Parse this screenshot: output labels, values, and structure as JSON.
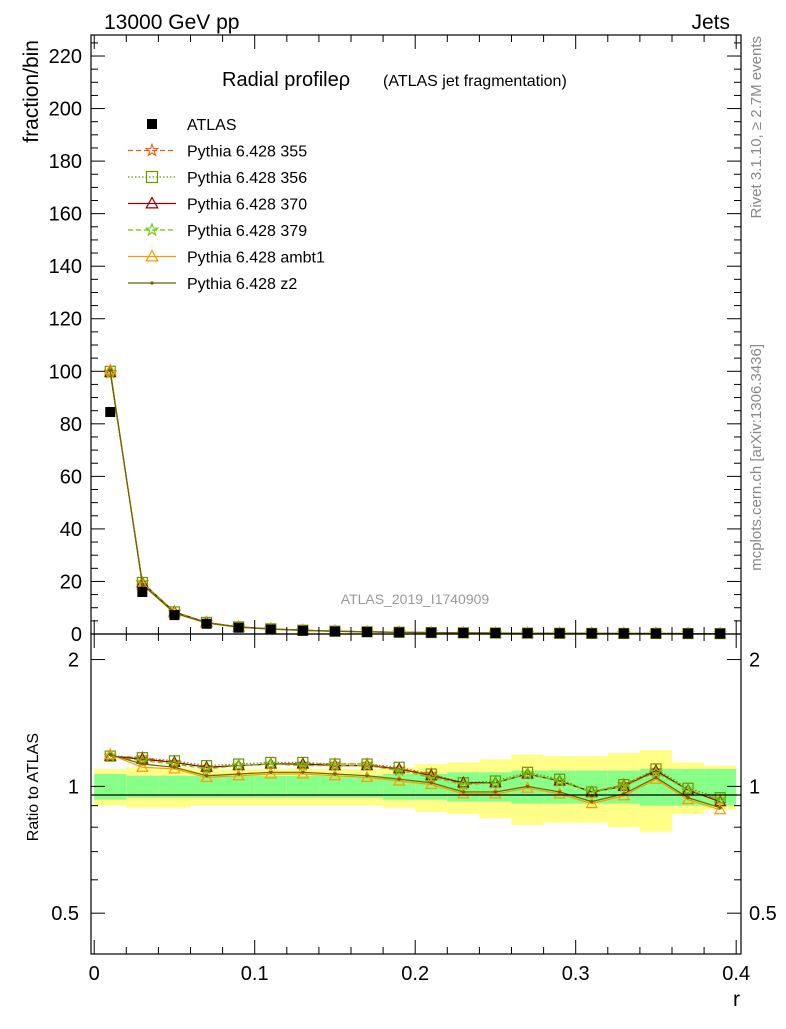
{
  "header": {
    "process": "13000 GeV pp",
    "category": "Jets"
  },
  "side_labels": {
    "rivet": "Rivet 3.1.10, ≥ 2.7M events",
    "mcplots": "mcplots.cern.ch [arXiv:1306.3436]"
  },
  "chart_data": {
    "type": "line",
    "title": "Radial profileρ",
    "subtitle": "(ATLAS jet fragmentation)",
    "analysis_id": "ATLAS_2019_I1740909",
    "xlabel": "r",
    "ylabel": "fraction/bin",
    "ratio_ylabel": "Ratio to ATLAS",
    "xlim": [
      -0.002,
      0.403
    ],
    "ylim": [
      0,
      228
    ],
    "ratio_ylim": [
      0.4,
      2.3
    ],
    "ratio_scale": "log",
    "x_ticks": [
      "0",
      "0.1",
      "0.2",
      "0.3",
      "0.4"
    ],
    "y_ticks": [
      "0",
      "20",
      "40",
      "60",
      "80",
      "100",
      "120",
      "140",
      "160",
      "180",
      "200",
      "220"
    ],
    "ratio_ticks_left": [
      "0.5",
      "1",
      "2"
    ],
    "ratio_ticks_right": [
      "0.5",
      "1",
      "2"
    ],
    "legend_placement": "top-left",
    "x": [
      0.01,
      0.03,
      0.05,
      0.07,
      0.09,
      0.11,
      0.13,
      0.15,
      0.17,
      0.19,
      0.21,
      0.23,
      0.25,
      0.27,
      0.29,
      0.31,
      0.33,
      0.35,
      0.37,
      0.39
    ],
    "data": {
      "name": "ATLAS",
      "values": [
        84.5,
        16.0,
        7.2,
        3.9,
        2.4,
        1.7,
        1.25,
        0.95,
        0.75,
        0.6,
        0.5,
        0.42,
        0.36,
        0.31,
        0.27,
        0.24,
        0.21,
        0.19,
        0.17,
        0.15
      ],
      "band_inner": [
        0.07,
        0.06,
        0.06,
        0.06,
        0.06,
        0.06,
        0.06,
        0.06,
        0.06,
        0.07,
        0.07,
        0.08,
        0.08,
        0.09,
        0.09,
        0.09,
        0.09,
        0.1,
        0.1,
        0.1
      ],
      "band_outer": [
        0.1,
        0.11,
        0.11,
        0.1,
        0.1,
        0.1,
        0.1,
        0.1,
        0.1,
        0.11,
        0.13,
        0.14,
        0.16,
        0.19,
        0.18,
        0.18,
        0.2,
        0.22,
        0.14,
        0.12
      ]
    },
    "series": [
      {
        "name": "Pythia 6.428 355",
        "color": "#ff5500",
        "dash": "5,3",
        "marker": "star",
        "values": [
          99.7,
          19.6,
          8.4,
          4.4,
          2.7,
          1.95,
          1.43,
          1.08,
          0.86,
          0.66,
          0.54,
          0.42,
          0.37,
          0.33,
          0.28,
          0.23,
          0.21,
          0.21,
          0.17,
          0.14
        ],
        "ratio": [
          1.18,
          1.17,
          1.14,
          1.11,
          1.12,
          1.13,
          1.13,
          1.13,
          1.13,
          1.1,
          1.07,
          1.01,
          1.02,
          1.07,
          1.03,
          0.97,
          1.01,
          1.09,
          0.98,
          0.93
        ]
      },
      {
        "name": "Pythia 6.428 356",
        "color": "#669900",
        "dash": "1.5,2",
        "marker": "square",
        "values": [
          100.0,
          19.6,
          8.4,
          4.4,
          2.7,
          1.95,
          1.43,
          1.08,
          0.86,
          0.66,
          0.54,
          0.43,
          0.37,
          0.33,
          0.28,
          0.23,
          0.21,
          0.21,
          0.17,
          0.14
        ],
        "ratio": [
          1.18,
          1.17,
          1.15,
          1.12,
          1.13,
          1.14,
          1.14,
          1.13,
          1.13,
          1.11,
          1.07,
          1.02,
          1.03,
          1.08,
          1.04,
          0.97,
          1.01,
          1.1,
          0.99,
          0.94
        ]
      },
      {
        "name": "Pythia 6.428 370",
        "color": "#990000",
        "dash": "",
        "marker": "triangle",
        "values": [
          99.5,
          19.5,
          8.4,
          4.4,
          2.7,
          1.95,
          1.42,
          1.07,
          0.85,
          0.66,
          0.53,
          0.42,
          0.37,
          0.33,
          0.28,
          0.23,
          0.21,
          0.21,
          0.17,
          0.14
        ],
        "ratio": [
          1.18,
          1.16,
          1.14,
          1.11,
          1.12,
          1.13,
          1.13,
          1.12,
          1.12,
          1.1,
          1.06,
          1.02,
          1.02,
          1.07,
          1.03,
          0.97,
          1.0,
          1.09,
          0.98,
          0.92
        ]
      },
      {
        "name": "Pythia 6.428 379",
        "color": "#66cc00",
        "dash": "5,3",
        "marker": "star",
        "values": [
          99.3,
          19.5,
          8.3,
          4.3,
          2.7,
          1.94,
          1.41,
          1.07,
          0.85,
          0.65,
          0.53,
          0.42,
          0.36,
          0.33,
          0.28,
          0.23,
          0.21,
          0.2,
          0.17,
          0.14
        ],
        "ratio": [
          1.18,
          1.15,
          1.13,
          1.1,
          1.12,
          1.13,
          1.12,
          1.12,
          1.12,
          1.09,
          1.05,
          1.01,
          1.02,
          1.07,
          1.03,
          0.97,
          1.0,
          1.08,
          0.98,
          0.93
        ]
      },
      {
        "name": "Pythia 6.428 ambt1",
        "color": "#ff9900",
        "dash": "",
        "marker": "triangle",
        "values": [
          100.5,
          18.7,
          7.9,
          4.1,
          2.55,
          1.83,
          1.35,
          1.01,
          0.8,
          0.62,
          0.5,
          0.4,
          0.35,
          0.31,
          0.26,
          0.22,
          0.2,
          0.2,
          0.16,
          0.13
        ],
        "ratio": [
          1.19,
          1.11,
          1.1,
          1.05,
          1.06,
          1.07,
          1.07,
          1.06,
          1.05,
          1.03,
          1.01,
          0.96,
          0.96,
          0.99,
          0.96,
          0.91,
          0.95,
          1.04,
          0.93,
          0.88
        ]
      },
      {
        "name": "Pythia 6.428 z2",
        "color": "#666600",
        "dash": "",
        "marker": "dot",
        "values": [
          100.2,
          18.9,
          8.0,
          4.2,
          2.6,
          1.85,
          1.37,
          1.02,
          0.81,
          0.63,
          0.51,
          0.41,
          0.35,
          0.31,
          0.27,
          0.22,
          0.2,
          0.2,
          0.16,
          0.13
        ],
        "ratio": [
          1.19,
          1.13,
          1.11,
          1.06,
          1.07,
          1.08,
          1.08,
          1.07,
          1.06,
          1.04,
          1.02,
          0.97,
          0.97,
          1.0,
          0.97,
          0.92,
          0.96,
          1.05,
          0.94,
          0.89
        ]
      }
    ]
  }
}
